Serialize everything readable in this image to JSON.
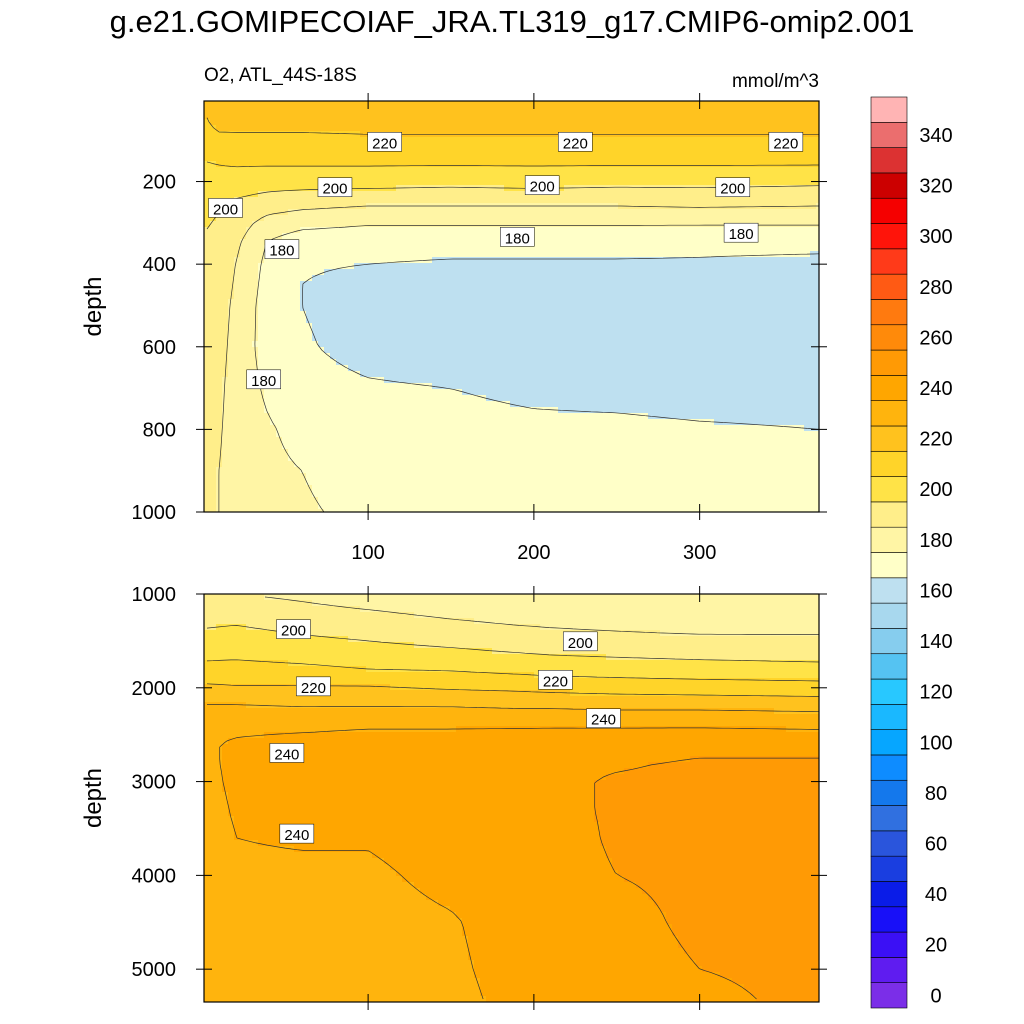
{
  "title": "g.e21.GOMIPECOIAF_JRA.TL319_g17.CMIP6-omip2.001",
  "left_subtitle": "O2, ATL_44S-18S",
  "right_subtitle": "mmol/m^3",
  "colors": {
    "frame": "#000000",
    "contour_line": "#333333",
    "label_bg": "#ffffff"
  },
  "colorbar": {
    "levels": [
      0,
      10,
      20,
      30,
      40,
      50,
      60,
      70,
      80,
      90,
      100,
      110,
      120,
      130,
      140,
      150,
      160,
      170,
      180,
      190,
      200,
      210,
      220,
      230,
      240,
      250,
      260,
      270,
      280,
      290,
      300,
      310,
      320,
      330,
      340,
      350
    ],
    "colors": [
      "#7b2ee8",
      "#5f1cf0",
      "#3b10f5",
      "#1810f8",
      "#0a1ce8",
      "#1a3ee0",
      "#2a55dc",
      "#3070e0",
      "#1478ec",
      "#0e8cff",
      "#06a6ff",
      "#1ab8ff",
      "#28c8ff",
      "#55c3f2",
      "#86cdee",
      "#a8d8ee",
      "#bee0f0",
      "#ffffc8",
      "#fff5a5",
      "#ffee8a",
      "#ffe347",
      "#ffd429",
      "#ffc21e",
      "#ffb40d",
      "#ffa600",
      "#ff9a05",
      "#ff8a0a",
      "#ff7a0f",
      "#ff5a14",
      "#ff3a19",
      "#ff140a",
      "#f50000",
      "#cc0000",
      "#dc3232",
      "#eb6e6e",
      "#ffb4b4"
    ],
    "tick_labels": [
      "0",
      "20",
      "40",
      "60",
      "80",
      "100",
      "120",
      "140",
      "160",
      "180",
      "200",
      "220",
      "240",
      "260",
      "280",
      "300",
      "320",
      "340"
    ]
  },
  "chart_data": [
    {
      "type": "contour",
      "panel": "upper",
      "subtitle_left": "O2, ATL_44S-18S",
      "subtitle_right": "mmol/m^3",
      "ylabel": "depth",
      "xlabel": "",
      "xlim": [
        1,
        372
      ],
      "ylim": [
        1000,
        5
      ],
      "y_reversed": true,
      "xticks": [
        100,
        200,
        300
      ],
      "xtick_labels": [
        "100",
        "200",
        "300"
      ],
      "yticks": [
        200,
        400,
        600,
        800,
        1000
      ],
      "ytick_labels": [
        "200",
        "400",
        "600",
        "800",
        "1000"
      ],
      "x": [
        1,
        10,
        20,
        40,
        60,
        100,
        150,
        200,
        250,
        300,
        372
      ],
      "y": [
        5,
        50,
        100,
        150,
        200,
        250,
        300,
        350,
        400,
        450,
        500,
        600,
        700,
        800,
        900,
        1000
      ],
      "z": [
        [
          222,
          230,
          230,
          230,
          230,
          230,
          230,
          230,
          230,
          230,
          230
        ],
        [
          218,
          226,
          225,
          225,
          225,
          225,
          225,
          225,
          225,
          225,
          225
        ],
        [
          214,
          216,
          217,
          217,
          217,
          218,
          218,
          218,
          218,
          218,
          218
        ],
        [
          210,
          211,
          212,
          212,
          212,
          212,
          212,
          212,
          212,
          212,
          212
        ],
        [
          206,
          206,
          205,
          204,
          204,
          204,
          203,
          204,
          203,
          203,
          202
        ],
        [
          203,
          201,
          199,
          196,
          194,
          192,
          192,
          192,
          192,
          193,
          192
        ],
        [
          201,
          199,
          195,
          186,
          183,
          181,
          181,
          181,
          181,
          181,
          181
        ],
        [
          199,
          197,
          192,
          179,
          174,
          173,
          173,
          173,
          173,
          172,
          172
        ],
        [
          197,
          196,
          190,
          177,
          171,
          170,
          169,
          169,
          169,
          169,
          168
        ],
        [
          196,
          195,
          189,
          176,
          170,
          167,
          166,
          165,
          165,
          165,
          165
        ],
        [
          195,
          194,
          188,
          175,
          170,
          166,
          165,
          164,
          164,
          164,
          164
        ],
        [
          194,
          193,
          187,
          175,
          171,
          167,
          165,
          164,
          164,
          164,
          164
        ],
        [
          194,
          192,
          186,
          178,
          173,
          171,
          170,
          168,
          167,
          166,
          166
        ],
        [
          193,
          191,
          186,
          181,
          177,
          174,
          173,
          172,
          172,
          171,
          170
        ],
        [
          193,
          190,
          186,
          182,
          180,
          176,
          175,
          175,
          175,
          174,
          174
        ],
        [
          192,
          190,
          186,
          184,
          181,
          178,
          177,
          177,
          177,
          177,
          176
        ]
      ],
      "contour_levels": [
        170,
        180,
        190,
        200,
        210,
        220,
        230
      ],
      "contour_labels": [
        {
          "text": "220",
          "x": 110,
          "y": 105
        },
        {
          "text": "220",
          "x": 225,
          "y": 105
        },
        {
          "text": "220",
          "x": 352,
          "y": 105
        },
        {
          "text": "200",
          "x": 80,
          "y": 215
        },
        {
          "text": "200",
          "x": 205,
          "y": 210
        },
        {
          "text": "200",
          "x": 320,
          "y": 215
        },
        {
          "text": "200",
          "x": 14,
          "y": 265
        },
        {
          "text": "180",
          "x": 48,
          "y": 365
        },
        {
          "text": "180",
          "x": 190,
          "y": 335
        },
        {
          "text": "180",
          "x": 325,
          "y": 325
        },
        {
          "text": "180",
          "x": 37,
          "y": 680
        }
      ]
    },
    {
      "type": "contour",
      "panel": "lower",
      "ylabel": "depth",
      "xlabel": "",
      "xlim": [
        1,
        372
      ],
      "ylim": [
        5350,
        1000
      ],
      "y_reversed": true,
      "xticks": [
        100,
        200,
        300
      ],
      "xtick_labels": [],
      "yticks": [
        1000,
        2000,
        3000,
        4000,
        5000
      ],
      "ytick_labels": [
        "1000",
        "2000",
        "3000",
        "4000",
        "5000"
      ],
      "x": [
        1,
        20,
        60,
        100,
        150,
        190,
        210,
        250,
        300,
        372
      ],
      "y": [
        1000,
        1200,
        1400,
        1600,
        1800,
        2000,
        2200,
        2400,
        2600,
        2800,
        3000,
        3300,
        3600,
        4000,
        4500,
        5000,
        5350
      ],
      "z": [
        [
          190,
          190,
          188,
          185,
          183,
          181,
          181,
          180,
          180,
          180
        ],
        [
          195,
          196,
          193,
          191,
          188,
          186,
          186,
          185,
          184,
          184
        ],
        [
          201,
          202,
          199,
          197,
          194,
          192,
          191,
          190,
          189,
          189
        ],
        [
          206,
          207,
          205,
          203,
          201,
          199,
          198,
          197,
          196,
          195
        ],
        [
          213,
          213,
          212,
          210,
          209,
          207,
          206,
          205,
          204,
          203
        ],
        [
          222,
          221,
          221,
          221,
          219,
          218,
          217,
          216,
          215,
          214
        ],
        [
          231,
          231,
          230,
          230,
          230,
          229,
          229,
          228,
          228,
          227
        ],
        [
          237,
          238,
          238,
          239,
          239,
          239,
          239,
          239,
          239,
          238
        ],
        [
          239,
          241,
          243,
          244,
          244,
          245,
          246,
          246,
          247,
          247
        ],
        [
          238,
          242,
          243,
          245,
          245,
          246,
          248,
          249,
          251,
          251
        ],
        [
          237,
          242,
          243,
          245,
          245,
          246,
          248,
          251,
          252,
          252
        ],
        [
          236,
          241,
          242,
          245,
          245,
          246,
          248,
          251,
          252,
          252
        ],
        [
          235,
          240,
          241,
          241,
          245,
          246,
          247,
          251,
          252,
          252
        ],
        [
          234,
          238,
          238,
          238,
          243,
          246,
          247,
          250,
          252,
          252
        ],
        [
          232,
          236,
          236,
          236,
          239,
          245,
          246,
          247,
          252,
          252
        ],
        [
          231,
          234,
          234,
          235,
          238,
          244,
          245,
          246,
          250,
          252
        ],
        [
          230,
          233,
          233,
          234,
          237,
          243,
          245,
          246,
          248,
          252
        ]
      ],
      "contour_levels": [
        190,
        200,
        210,
        220,
        230,
        240,
        250
      ],
      "contour_labels": [
        {
          "text": "200",
          "x": 55,
          "y": 1380
        },
        {
          "text": "200",
          "x": 228,
          "y": 1510
        },
        {
          "text": "220",
          "x": 67,
          "y": 1990
        },
        {
          "text": "220",
          "x": 213,
          "y": 1920
        },
        {
          "text": "240",
          "x": 242,
          "y": 2330
        },
        {
          "text": "240",
          "x": 51,
          "y": 2700
        },
        {
          "text": "240",
          "x": 57,
          "y": 3560
        }
      ]
    }
  ]
}
